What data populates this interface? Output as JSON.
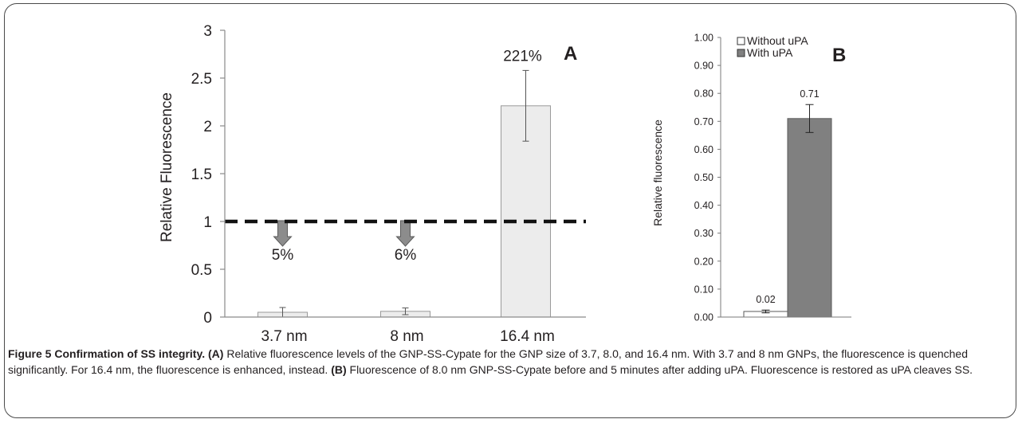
{
  "figure": {
    "caption_label": "Figure 5",
    "caption_title": "Confirmation of SS integrity.",
    "caption_parts": [
      {
        "tag": "(A)",
        "text": " Relative fluorescence levels of the GNP-SS-Cypate for the GNP size of 3.7, 8.0, and 16.4 nm. With 3.7 and 8 nm GNPs, the fluorescence is quenched significantly. For 16.4 nm, the fluorescence is enhanced, instead. "
      },
      {
        "tag": "(B)",
        "text": " Fluorescence of 8.0 nm GNP-SS-Cypate before and 5 minutes after adding uPA. Fluorescence is restored as uPA cleaves SS."
      }
    ]
  },
  "chart_data": [
    {
      "panel": "A",
      "type": "bar",
      "ylabel": "Relative Fluorescence",
      "ylim": [
        0,
        3
      ],
      "yticks": [
        "0",
        "0.5",
        "1",
        "1.5",
        "2",
        "2.5",
        "3"
      ],
      "ytick_values": [
        0,
        0.5,
        1,
        1.5,
        2,
        2.5,
        3
      ],
      "categories": [
        "3.7 nm",
        "8 nm",
        "16.4 nm"
      ],
      "values": [
        0.05,
        0.06,
        2.21
      ],
      "errors": [
        0.05,
        0.035,
        0.37
      ],
      "value_labels": [
        "5%",
        "6%",
        "221%"
      ],
      "reference_line": 1,
      "bar_color": "#ececec",
      "arrow_color": "#8c8c8c"
    },
    {
      "panel": "B",
      "type": "bar",
      "ylabel": "Relative fluorescence",
      "ylim": [
        0,
        1
      ],
      "yticks": [
        "0.00",
        "0.10",
        "0.20",
        "0.30",
        "0.40",
        "0.50",
        "0.60",
        "0.70",
        "0.80",
        "0.90",
        "1.00"
      ],
      "ytick_values": [
        0,
        0.1,
        0.2,
        0.3,
        0.4,
        0.5,
        0.6,
        0.7,
        0.8,
        0.9,
        1.0
      ],
      "series": [
        {
          "name": "Without uPA",
          "values": [
            0.02
          ],
          "errors": [
            0.005
          ],
          "color": "#ffffff"
        },
        {
          "name": "With uPA",
          "values": [
            0.71
          ],
          "errors": [
            0.05
          ],
          "color": "#808080"
        }
      ],
      "value_labels": [
        "0.02",
        "0.71"
      ],
      "legend_position": "top-left"
    }
  ]
}
